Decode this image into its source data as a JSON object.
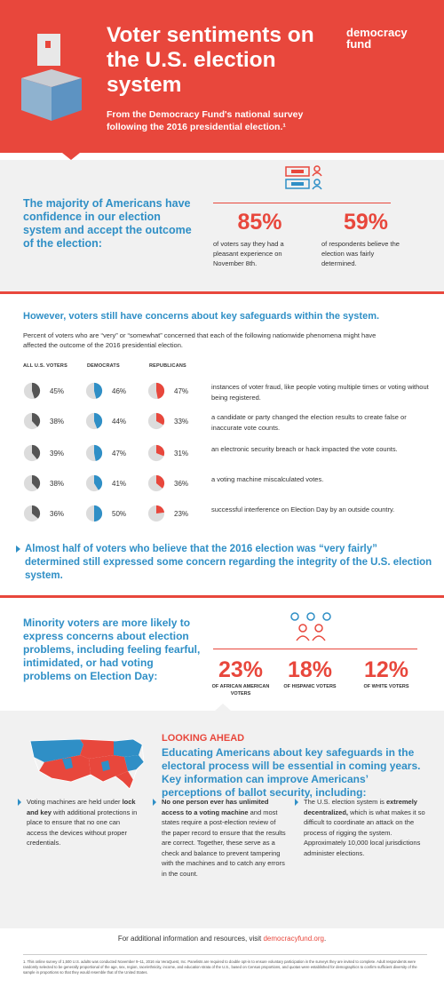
{
  "header": {
    "title": "Voter sentiments on the U.S. election system",
    "subtitle": "From the Democracy Fund's national survey following the 2016 presidential election.¹",
    "logo_line1": "democracy",
    "logo_line2": "fund",
    "brand_red": "#e8473c",
    "brand_blue": "#2f8fc6"
  },
  "confidence": {
    "text": "The majority of Americans have confidence in our election system and accept the outcome of the election:",
    "stats": [
      {
        "value": "85%",
        "desc": "of voters say they had a pleasant experience on November 8th."
      },
      {
        "value": "59%",
        "desc": "of respondents believe the election was fairly determined."
      }
    ]
  },
  "concerns": {
    "heading": "However, voters still have concerns about key safeguards within the system.",
    "intro": "Percent of voters who are “very” or “somewhat” concerned that each of the following nationwide phenomena might have affected the outcome of the 2016 presidential election.",
    "columns": [
      "ALL U.S. VOTERS",
      "DEMOCRATS",
      "REPUBLICANS"
    ],
    "rows": [
      {
        "all": 45,
        "dem": 46,
        "rep": 47,
        "label": "instances of voter fraud, like people voting multiple times or voting without being registered."
      },
      {
        "all": 38,
        "dem": 44,
        "rep": 33,
        "label": "a candidate or party changed the election results to create false or inaccurate vote counts."
      },
      {
        "all": 39,
        "dem": 47,
        "rep": 31,
        "label": "an electronic security breach or hack impacted the vote counts."
      },
      {
        "all": 38,
        "dem": 41,
        "rep": 36,
        "label": "a voting machine miscalculated votes."
      },
      {
        "all": 36,
        "dem": 50,
        "rep": 23,
        "label": "successful interference on Election Day by an outside country."
      }
    ],
    "callout": "Almost half of voters who believe that the 2016 election was “very fairly” determined still expressed some concern regarding the integrity of the U.S. election system."
  },
  "minority": {
    "text": "Minority voters are more likely to express concerns about election problems, including feeling fearful, intimidated, or had voting problems on Election Day:",
    "stats": [
      {
        "value": "23%",
        "label": "OF AFRICAN AMERICAN VOTERS"
      },
      {
        "value": "18%",
        "label": "OF HISPANIC VOTERS"
      },
      {
        "value": "12%",
        "label": "OF WHITE VOTERS"
      }
    ]
  },
  "ahead": {
    "kicker": "LOOKING AHEAD",
    "text": "Educating Americans about key safeguards in the electoral process will be essential in coming years. Key information can improve Americans’ perceptions of ballot security, including:",
    "bullets": [
      {
        "pre": "Voting machines are held under ",
        "bold": "lock and key",
        "post": " with additional protections in place to ensure that no one can access the devices without proper credentials."
      },
      {
        "pre": "",
        "bold": "No one person ever has unlimited access to a voting machine",
        "post": " and most states require a post-election review of the paper record to ensure that the results are correct. Together, these serve as a check and balance to prevent tampering with the machines and to catch any errors in the count."
      },
      {
        "pre": "The U.S. election system is ",
        "bold": "extremely decentralized,",
        "post": " which is what makes it so difficult to coordinate an attack on the process of rigging the system. Approximately 10,000 local jurisdictions administer elections."
      }
    ]
  },
  "footer": {
    "info_pre": "For additional information and resources, visit ",
    "info_link": "democracyfund.org",
    "info_post": ".",
    "footnote": "1. This online survey of 1,500 U.S. adults was conducted November 9–11, 2016 via VeraQuest, Inc. Panelists are required to double opt-in to ensure voluntary participation in the surveys they are invited to complete. Adult respondents were randomly selected to be generally proportional of the age, sex, region, race/ethnicity, income, and education strata of the U.S., based on Census proportions, and quotas were established for demographics to confirm sufficient diversity of the sample in proportions so that they would resemble that of the United States."
  }
}
